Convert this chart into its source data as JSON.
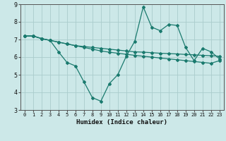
{
  "title": "",
  "xlabel": "Humidex (Indice chaleur)",
  "ylabel": "",
  "xlim": [
    -0.5,
    23.5
  ],
  "ylim": [
    3,
    9
  ],
  "xticks": [
    0,
    1,
    2,
    3,
    4,
    5,
    6,
    7,
    8,
    9,
    10,
    11,
    12,
    13,
    14,
    15,
    16,
    17,
    18,
    19,
    20,
    21,
    22,
    23
  ],
  "yticks": [
    3,
    4,
    5,
    6,
    7,
    8,
    9
  ],
  "bg_color": "#cce8e8",
  "grid_color": "#aacccc",
  "line_color": "#1a7a6e",
  "line1_x": [
    0,
    1,
    2,
    3,
    4,
    5,
    6,
    7,
    8,
    9,
    10,
    11,
    12,
    13,
    14,
    15,
    16,
    17,
    18,
    19,
    20,
    21,
    22,
    23
  ],
  "line1_y": [
    7.2,
    7.2,
    7.05,
    6.95,
    6.85,
    6.75,
    6.65,
    6.6,
    6.55,
    6.5,
    6.45,
    6.4,
    6.35,
    6.3,
    6.28,
    6.25,
    6.22,
    6.2,
    6.18,
    6.15,
    6.13,
    6.1,
    6.08,
    6.05
  ],
  "line2_x": [
    0,
    1,
    2,
    3,
    4,
    5,
    6,
    7,
    8,
    9,
    10,
    11,
    12,
    13,
    14,
    15,
    16,
    17,
    18,
    19,
    20,
    21,
    22,
    23
  ],
  "line2_y": [
    7.2,
    7.2,
    7.05,
    6.95,
    6.3,
    5.7,
    5.5,
    4.6,
    3.7,
    3.5,
    4.5,
    5.0,
    6.05,
    6.9,
    8.85,
    7.7,
    7.5,
    7.85,
    7.8,
    6.55,
    5.8,
    6.5,
    6.3,
    5.9
  ],
  "line3_x": [
    0,
    1,
    2,
    3,
    4,
    5,
    6,
    7,
    8,
    9,
    10,
    11,
    12,
    13,
    14,
    15,
    16,
    17,
    18,
    19,
    20,
    21,
    22,
    23
  ],
  "line3_y": [
    7.2,
    7.2,
    7.05,
    6.95,
    6.85,
    6.75,
    6.65,
    6.55,
    6.45,
    6.35,
    6.28,
    6.22,
    6.16,
    6.1,
    6.05,
    6.0,
    5.95,
    5.9,
    5.85,
    5.8,
    5.75,
    5.7,
    5.65,
    5.8
  ],
  "marker": "D",
  "markersize": 2,
  "linewidth": 0.9
}
